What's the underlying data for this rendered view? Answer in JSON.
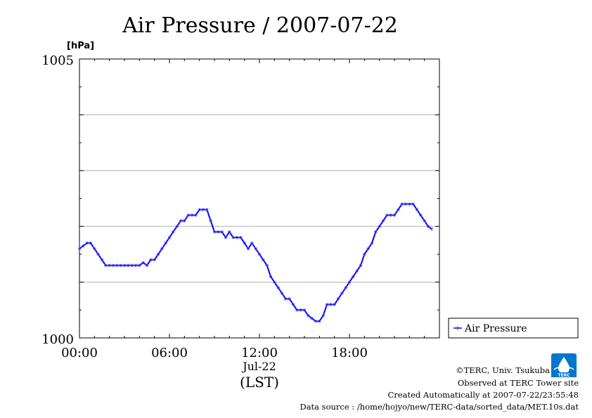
{
  "chart_data": {
    "type": "line",
    "title": "Air Pressure / 2007-07-22",
    "ylabel": "[hPa]",
    "ylim": [
      1000,
      1005
    ],
    "y_ticks": [
      "1000",
      "1005"
    ],
    "y_gridlines": [
      1001,
      1002,
      1003,
      1004
    ],
    "xlim": [
      0,
      24
    ],
    "x_ticks": [
      {
        "value": 0,
        "label": "00:00"
      },
      {
        "value": 6,
        "label": "06:00"
      },
      {
        "value": 12,
        "label": "12:00"
      },
      {
        "value": 18,
        "label": "18:00"
      }
    ],
    "x_date_label": "Jul-22",
    "x_timezone_label": "(LST)",
    "grid": true,
    "legend_position": "right",
    "series": [
      {
        "name": "Air Pressure",
        "color": "#0000ff",
        "point_color": "#6666ff",
        "x": [
          0.0,
          0.25,
          0.5,
          0.75,
          1.0,
          1.25,
          1.5,
          1.75,
          2.0,
          2.25,
          2.5,
          2.75,
          3.0,
          3.25,
          3.5,
          3.75,
          4.0,
          4.25,
          4.5,
          4.75,
          5.0,
          5.25,
          5.5,
          5.75,
          6.0,
          6.25,
          6.5,
          6.75,
          7.0,
          7.25,
          7.5,
          7.75,
          8.0,
          8.25,
          8.5,
          8.75,
          9.0,
          9.25,
          9.5,
          9.75,
          10.0,
          10.25,
          10.5,
          10.75,
          11.0,
          11.25,
          11.5,
          11.75,
          12.0,
          12.25,
          12.5,
          12.75,
          13.0,
          13.25,
          13.5,
          13.75,
          14.0,
          14.25,
          14.5,
          14.75,
          15.0,
          15.25,
          15.5,
          15.75,
          16.0,
          16.25,
          16.5,
          16.75,
          17.0,
          17.25,
          17.5,
          17.75,
          18.0,
          18.25,
          18.5,
          18.75,
          19.0,
          19.25,
          19.5,
          19.75,
          20.0,
          20.25,
          20.5,
          20.75,
          21.0,
          21.25,
          21.5,
          21.75,
          22.0,
          22.25,
          22.5,
          22.75,
          23.0,
          23.25,
          23.5
        ],
        "y": [
          1001.6,
          1001.65,
          1001.7,
          1001.7,
          1001.6,
          1001.5,
          1001.4,
          1001.3,
          1001.3,
          1001.3,
          1001.3,
          1001.3,
          1001.3,
          1001.3,
          1001.3,
          1001.3,
          1001.3,
          1001.35,
          1001.3,
          1001.4,
          1001.4,
          1001.5,
          1001.6,
          1001.7,
          1001.8,
          1001.9,
          1002.0,
          1002.1,
          1002.1,
          1002.2,
          1002.2,
          1002.2,
          1002.3,
          1002.3,
          1002.3,
          1002.1,
          1001.9,
          1001.9,
          1001.9,
          1001.8,
          1001.9,
          1001.8,
          1001.8,
          1001.8,
          1001.7,
          1001.6,
          1001.7,
          1001.6,
          1001.5,
          1001.4,
          1001.3,
          1001.1,
          1001.0,
          1000.9,
          1000.8,
          1000.7,
          1000.7,
          1000.6,
          1000.5,
          1000.5,
          1000.5,
          1000.4,
          1000.35,
          1000.3,
          1000.3,
          1000.4,
          1000.6,
          1000.6,
          1000.6,
          1000.7,
          1000.8,
          1000.9,
          1001.0,
          1001.1,
          1001.2,
          1001.3,
          1001.5,
          1001.6,
          1001.7,
          1001.9,
          1002.0,
          1002.1,
          1002.2,
          1002.2,
          1002.2,
          1002.3,
          1002.4,
          1002.4,
          1002.4,
          1002.4,
          1002.3,
          1002.2,
          1002.1,
          1002.0,
          1001.95
        ]
      }
    ]
  },
  "credits": {
    "copyright": "©TERC, Univ. Tsukuba",
    "site": "Observed at TERC Tower site",
    "created": "Created Automatically at 2007-07-22/23:55:48",
    "source": "Data source : /home/hojyo/new/TERC-data/sorted_data/MET.10s.dat"
  },
  "logo": {
    "text": "TERC",
    "color": "#0077cc"
  }
}
